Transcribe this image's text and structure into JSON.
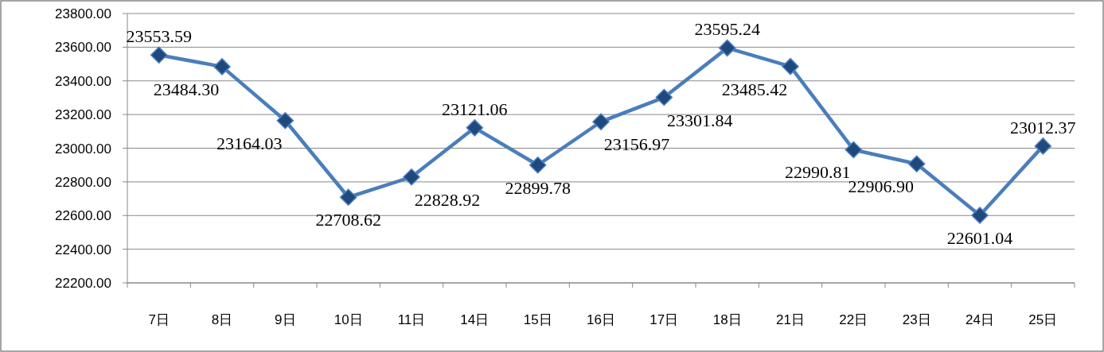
{
  "chart_data": {
    "type": "line",
    "categories": [
      "7日",
      "8日",
      "9日",
      "10日",
      "11日",
      "14日",
      "15日",
      "16日",
      "17日",
      "18日",
      "21日",
      "22日",
      "23日",
      "24日",
      "25日"
    ],
    "series": [
      {
        "color": "#4a7ebb",
        "values": [
          23553.59,
          23484.3,
          23164.03,
          22708.62,
          22828.92,
          23121.06,
          22899.78,
          23156.97,
          23301.84,
          23595.24,
          23485.42,
          22990.81,
          22906.9,
          22601.04,
          23012.37
        ],
        "value_labels": [
          "23553.59",
          "23484.30",
          "23164.03",
          "22708.62",
          "22828.92",
          "23121.06",
          "22899.78",
          "23156.97",
          "23301.84",
          "23595.24",
          "23485.42",
          "22990.81",
          "22906.90",
          "22601.04",
          "23012.37"
        ]
      }
    ],
    "ylim": [
      22200,
      23800
    ],
    "yticks": [
      {
        "value": 22200,
        "label": "22200.00"
      },
      {
        "value": 22400,
        "label": "22400.00"
      },
      {
        "value": 22600,
        "label": "22600.00"
      },
      {
        "value": 22800,
        "label": "22800.00"
      },
      {
        "value": 23000,
        "label": "23000.00"
      },
      {
        "value": 23200,
        "label": "23200.00"
      },
      {
        "value": 23400,
        "label": "23400.00"
      },
      {
        "value": 23600,
        "label": "23600.00"
      },
      {
        "value": 23800,
        "label": "23800.00"
      }
    ],
    "grid": "y",
    "marker": "diamond",
    "line_style": "solid"
  }
}
